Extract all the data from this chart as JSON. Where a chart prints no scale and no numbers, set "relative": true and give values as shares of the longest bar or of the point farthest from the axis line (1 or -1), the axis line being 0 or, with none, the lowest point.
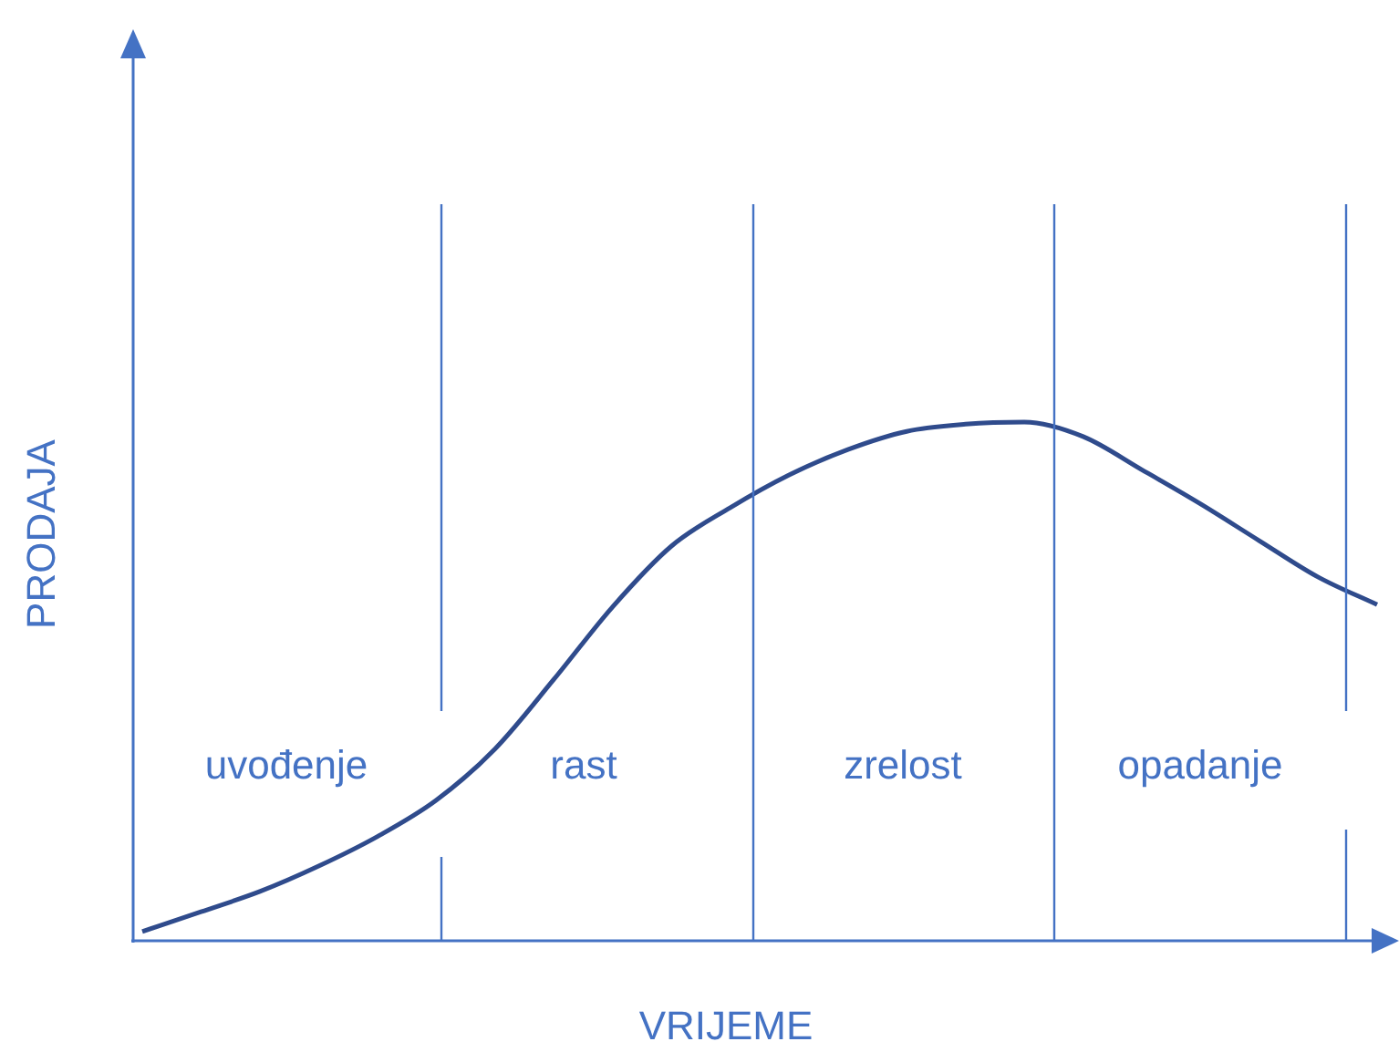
{
  "chart_data": {
    "type": "line",
    "xlabel": "VRIJEME",
    "ylabel": "PRODAJA",
    "relative": true,
    "marker": "none",
    "categories": [
      null,
      null,
      null,
      null,
      null,
      null,
      null,
      null,
      null,
      null,
      null,
      null,
      null,
      null,
      null,
      null,
      null,
      null,
      null,
      null,
      null,
      null
    ],
    "series": [
      {
        "color": "#2f4b8c",
        "values": [
          0.018,
          0.056,
          0.095,
          0.144,
          0.201,
          0.271,
          0.37,
          0.504,
          0.644,
          0.761,
          0.835,
          0.898,
          0.947,
          0.982,
          0.996,
          1,
          0.972,
          0.908,
          0.842,
          0.771,
          0.701,
          0.648
        ]
      }
    ],
    "annotations": [
      "uvođenje",
      "rast",
      "zrelost",
      "opadanje"
    ]
  }
}
